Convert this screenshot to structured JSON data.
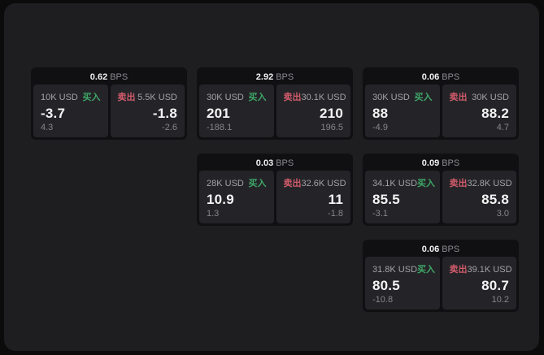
{
  "colors": {
    "page_bg": "#0b0b0c",
    "panel_bg": "#1e1e20",
    "card_bg": "#101012",
    "tile_bg": "#242428",
    "buy_accent": "#3ea767",
    "sell_accent": "#d15b6b",
    "value_text": "#f4f4f5",
    "muted_text": "#85858a"
  },
  "cards": [
    {
      "bps_value": "0.62",
      "bps_unit": "BPS",
      "buy": {
        "amount": "10K USD",
        "label": "买入",
        "value": "-3.7",
        "delta": "4.3"
      },
      "sell": {
        "label": "卖出",
        "amount": "5.5K USD",
        "value": "-1.8",
        "delta": "-2.6"
      }
    },
    {
      "bps_value": "2.92",
      "bps_unit": "BPS",
      "buy": {
        "amount": "30K USD",
        "label": "买入",
        "value": "201",
        "delta": "-188.1"
      },
      "sell": {
        "label": "卖出",
        "amount": "30.1K USD",
        "value": "210",
        "delta": "196.5"
      }
    },
    {
      "bps_value": "0.06",
      "bps_unit": "BPS",
      "buy": {
        "amount": "30K USD",
        "label": "买入",
        "value": "88",
        "delta": "-4.9"
      },
      "sell": {
        "label": "卖出",
        "amount": "30K USD",
        "value": "88.2",
        "delta": "4.7"
      }
    },
    {
      "bps_value": "0.03",
      "bps_unit": "BPS",
      "buy": {
        "amount": "28K USD",
        "label": "买入",
        "value": "10.9",
        "delta": "1.3"
      },
      "sell": {
        "label": "卖出",
        "amount": "32.6K USD",
        "value": "11",
        "delta": "-1.8"
      }
    },
    {
      "bps_value": "0.09",
      "bps_unit": "BPS",
      "buy": {
        "amount": "34.1K USD",
        "label": "买入",
        "value": "85.5",
        "delta": "-3.1"
      },
      "sell": {
        "label": "卖出",
        "amount": "32.8K USD",
        "value": "85.8",
        "delta": "3.0"
      }
    },
    {
      "bps_value": "0.06",
      "bps_unit": "BPS",
      "buy": {
        "amount": "31.8K USD",
        "label": "买入",
        "value": "80.5",
        "delta": "-10.8"
      },
      "sell": {
        "label": "卖出",
        "amount": "39.1K USD",
        "value": "80.7",
        "delta": "10.2"
      }
    }
  ]
}
